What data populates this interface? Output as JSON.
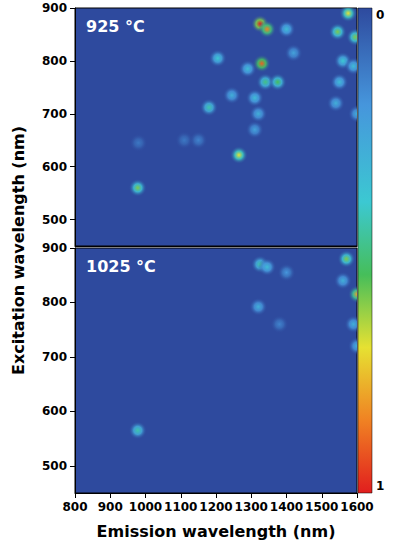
{
  "chart_data": {
    "type": "heatmap",
    "x_label": "Emission wavelength (nm)",
    "y_label": "Excitation wavelength (nm)",
    "xlim": [
      800,
      1600
    ],
    "xticks": [
      800,
      900,
      1000,
      1100,
      1200,
      1300,
      1400,
      1500,
      1600
    ],
    "ylim": [
      450,
      900
    ],
    "yticks": [
      500,
      600,
      700,
      800,
      900
    ],
    "colorbar": {
      "range": [
        0,
        1
      ],
      "ticks": [
        0,
        1
      ]
    },
    "panels": [
      {
        "title": "925 °C",
        "cells": [
          [
            978,
            560,
            0.6
          ],
          [
            980,
            645,
            0.12
          ],
          [
            1110,
            650,
            0.12
          ],
          [
            1150,
            650,
            0.15
          ],
          [
            1180,
            712,
            0.45
          ],
          [
            1205,
            805,
            0.4
          ],
          [
            1245,
            735,
            0.3
          ],
          [
            1265,
            622,
            0.7
          ],
          [
            1290,
            785,
            0.35
          ],
          [
            1310,
            670,
            0.25
          ],
          [
            1310,
            730,
            0.35
          ],
          [
            1320,
            700,
            0.3
          ],
          [
            1325,
            870,
            1.0
          ],
          [
            1345,
            860,
            0.85
          ],
          [
            1330,
            795,
            0.9
          ],
          [
            1340,
            760,
            0.5
          ],
          [
            1375,
            760,
            0.55
          ],
          [
            1400,
            860,
            0.35
          ],
          [
            1420,
            815,
            0.25
          ],
          [
            1540,
            720,
            0.3
          ],
          [
            1550,
            760,
            0.35
          ],
          [
            1560,
            800,
            0.4
          ],
          [
            1545,
            855,
            0.6
          ],
          [
            1575,
            890,
            0.7
          ],
          [
            1590,
            790,
            0.35
          ],
          [
            1595,
            845,
            0.6
          ],
          [
            1600,
            700,
            0.3
          ]
        ]
      },
      {
        "title": "1025 °C",
        "cells": [
          [
            978,
            565,
            0.45
          ],
          [
            1320,
            792,
            0.3
          ],
          [
            1325,
            870,
            0.45
          ],
          [
            1345,
            865,
            0.35
          ],
          [
            1380,
            760,
            0.15
          ],
          [
            1400,
            855,
            0.2
          ],
          [
            1560,
            840,
            0.3
          ],
          [
            1570,
            880,
            0.6
          ],
          [
            1590,
            760,
            0.3
          ],
          [
            1600,
            720,
            0.3
          ],
          [
            1600,
            815,
            0.8
          ]
        ]
      }
    ]
  }
}
